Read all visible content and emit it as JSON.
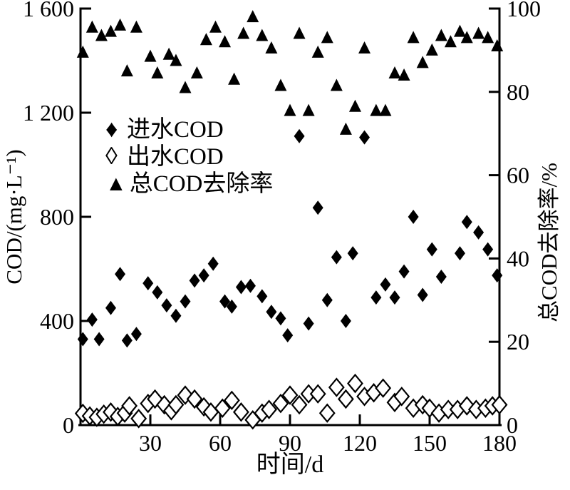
{
  "chart_data": {
    "type": "scatter",
    "title": "",
    "xlabel": "时间/d",
    "ylabel_left": "COD/(mg·L⁻¹)",
    "ylabel_right": "总COD去除率/%",
    "xlim": [
      0,
      180
    ],
    "ylim_left": [
      0,
      1600
    ],
    "ylim_right": [
      0,
      100
    ],
    "xticks": [
      30,
      60,
      90,
      120,
      150,
      180
    ],
    "yticks_left": [
      0,
      400,
      800,
      1200,
      1600
    ],
    "ytick_labels_left": [
      "0",
      "400",
      "800",
      "1 200",
      "1 600"
    ],
    "yticks_right": [
      0,
      20,
      40,
      60,
      80,
      100
    ],
    "grid": false,
    "legend_position": "upper-left-inside",
    "marker_color": "#000000",
    "legend": [
      {
        "label": "进水COD",
        "marker": "diamond-filled",
        "marker_glyph": "♦"
      },
      {
        "label": "出水COD",
        "marker": "diamond-open",
        "marker_glyph": "◊"
      },
      {
        "label": "总COD去除率",
        "marker": "triangle-filled",
        "marker_glyph": "▲"
      }
    ],
    "series": [
      {
        "name": "进水COD",
        "axis": "left",
        "marker": "diamond-filled",
        "units": "mg·L⁻¹",
        "points": [
          [
            1,
            330
          ],
          [
            5,
            405
          ],
          [
            8,
            330
          ],
          [
            13,
            450
          ],
          [
            17,
            580
          ],
          [
            20,
            325
          ],
          [
            24,
            350
          ],
          [
            29,
            545
          ],
          [
            33,
            510
          ],
          [
            37,
            460
          ],
          [
            41,
            420
          ],
          [
            45,
            475
          ],
          [
            49,
            555
          ],
          [
            53,
            575
          ],
          [
            57,
            620
          ],
          [
            62,
            475
          ],
          [
            65,
            455
          ],
          [
            69,
            530
          ],
          [
            73,
            535
          ],
          [
            78,
            495
          ],
          [
            82,
            435
          ],
          [
            86,
            410
          ],
          [
            89,
            345
          ],
          [
            94,
            1110
          ],
          [
            98,
            390
          ],
          [
            102,
            835
          ],
          [
            106,
            480
          ],
          [
            110,
            645
          ],
          [
            114,
            400
          ],
          [
            117,
            660
          ],
          [
            122,
            1105
          ],
          [
            127,
            490
          ],
          [
            131,
            540
          ],
          [
            135,
            490
          ],
          [
            139,
            590
          ],
          [
            143,
            800
          ],
          [
            147,
            500
          ],
          [
            151,
            675
          ],
          [
            155,
            570
          ],
          [
            163,
            660
          ],
          [
            166,
            780
          ],
          [
            171,
            740
          ],
          [
            175,
            675
          ],
          [
            179,
            575
          ]
        ]
      },
      {
        "name": "出水COD",
        "axis": "left",
        "marker": "diamond-open",
        "units": "mg·L⁻¹",
        "points": [
          [
            1,
            45
          ],
          [
            4,
            35
          ],
          [
            7,
            30
          ],
          [
            10,
            42
          ],
          [
            13,
            50
          ],
          [
            16,
            33
          ],
          [
            19,
            46
          ],
          [
            21,
            74
          ],
          [
            25,
            25
          ],
          [
            29,
            83
          ],
          [
            32,
            100
          ],
          [
            36,
            78
          ],
          [
            39,
            55
          ],
          [
            41,
            78
          ],
          [
            45,
            115
          ],
          [
            49,
            100
          ],
          [
            53,
            70
          ],
          [
            56,
            50
          ],
          [
            61,
            65
          ],
          [
            65,
            95
          ],
          [
            69,
            50
          ],
          [
            74,
            20
          ],
          [
            78,
            46
          ],
          [
            81,
            60
          ],
          [
            86,
            83
          ],
          [
            90,
            115
          ],
          [
            94,
            78
          ],
          [
            98,
            120
          ],
          [
            102,
            120
          ],
          [
            106,
            46
          ],
          [
            110,
            145
          ],
          [
            114,
            100
          ],
          [
            118,
            160
          ],
          [
            122,
            110
          ],
          [
            126,
            124
          ],
          [
            130,
            142
          ],
          [
            135,
            87
          ],
          [
            138,
            110
          ],
          [
            143,
            65
          ],
          [
            147,
            78
          ],
          [
            150,
            65
          ],
          [
            154,
            46
          ],
          [
            158,
            60
          ],
          [
            162,
            60
          ],
          [
            166,
            74
          ],
          [
            170,
            60
          ],
          [
            174,
            65
          ],
          [
            177,
            74
          ],
          [
            180,
            78
          ]
        ]
      },
      {
        "name": "总COD去除率",
        "axis": "right",
        "marker": "triangle-filled",
        "units": "%",
        "points": [
          [
            1,
            89.5
          ],
          [
            5,
            95.5
          ],
          [
            9,
            93.5
          ],
          [
            13,
            94.5
          ],
          [
            17,
            96
          ],
          [
            20,
            85
          ],
          [
            24,
            95.5
          ],
          [
            30,
            88.5
          ],
          [
            33,
            84.5
          ],
          [
            38,
            89
          ],
          [
            41,
            87.5
          ],
          [
            45,
            81
          ],
          [
            50,
            84.5
          ],
          [
            54,
            92.5
          ],
          [
            58,
            95.5
          ],
          [
            62,
            92
          ],
          [
            66,
            83
          ],
          [
            70,
            94
          ],
          [
            74,
            98
          ],
          [
            78,
            93.5
          ],
          [
            82,
            90.5
          ],
          [
            86,
            81.5
          ],
          [
            90,
            75.5
          ],
          [
            94,
            94
          ],
          [
            98,
            75.5
          ],
          [
            102,
            89.5
          ],
          [
            106,
            93
          ],
          [
            110,
            81.5
          ],
          [
            114,
            71
          ],
          [
            118,
            76.5
          ],
          [
            122,
            90.5
          ],
          [
            127,
            75.5
          ],
          [
            131,
            75.5
          ],
          [
            135,
            84.5
          ],
          [
            139,
            84
          ],
          [
            143,
            93
          ],
          [
            147,
            87
          ],
          [
            151,
            90
          ],
          [
            155,
            93.5
          ],
          [
            159,
            92
          ],
          [
            163,
            94.5
          ],
          [
            166,
            93
          ],
          [
            171,
            94
          ],
          [
            175,
            93
          ],
          [
            179,
            91
          ]
        ]
      }
    ]
  }
}
